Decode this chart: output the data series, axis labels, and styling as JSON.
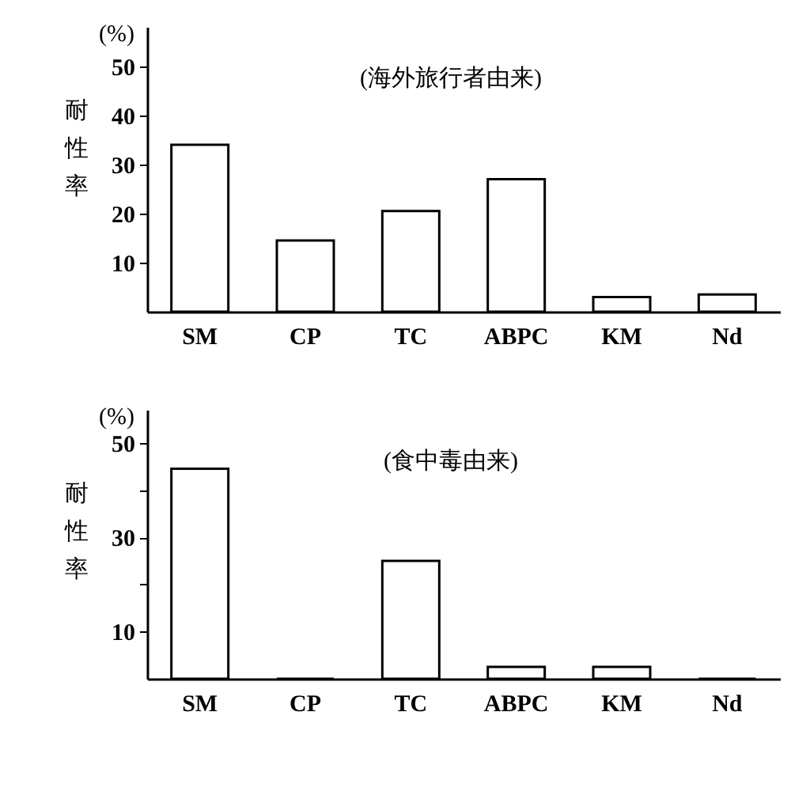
{
  "chart_data": [
    {
      "type": "bar",
      "ylabel": "耐性率",
      "annotations": [
        "(%)",
        "(海外旅行者由来)"
      ],
      "categories": [
        "SM",
        "CP",
        "TC",
        "ABPC",
        "KM",
        "Nd"
      ],
      "values": [
        34,
        14.5,
        20.5,
        27,
        3,
        3.5
      ],
      "color": "#ffffff",
      "ylim": [
        0,
        58
      ],
      "yticks": [
        10,
        20,
        30,
        40,
        50
      ]
    },
    {
      "type": "bar",
      "ylabel": "耐性率",
      "annotations": [
        "(%)",
        "(食中毒由来)"
      ],
      "categories": [
        "SM",
        "CP",
        "TC",
        "ABPC",
        "KM",
        "Nd"
      ],
      "values": [
        44.5,
        0,
        25,
        2.5,
        2.5,
        0
      ],
      "color": "#ffffff",
      "ylim": [
        0,
        57
      ],
      "yticks": [
        10,
        {
          "value": 20,
          "label": null
        },
        30,
        {
          "value": 40,
          "label": null
        },
        50
      ]
    }
  ]
}
